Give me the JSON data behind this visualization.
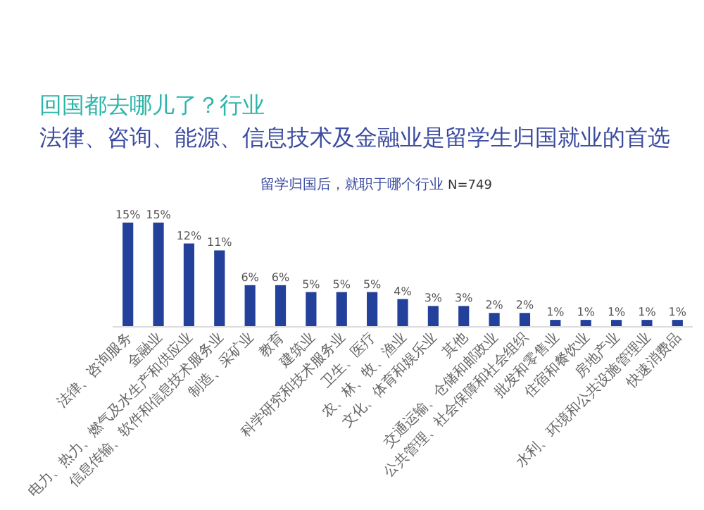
{
  "chart_data": {
    "type": "bar",
    "title": "回国都去哪儿了？行业",
    "subtitle": "法律、咨询、能源、信息技术及金融业是留学生归国就业的首选",
    "annotations": [
      "留学归国后，就职于哪个行业",
      "N=749"
    ],
    "categories": [
      "法律、咨询服务",
      "金融业",
      "电力、热力、燃气及水生产和供应业",
      "信息传输、软件和信息技术服务业",
      "制造、采矿业",
      "教育",
      "建筑业",
      "科学研究和技术服务业",
      "卫生、医疗",
      "农、林、牧、渔业",
      "文化、体育和娱乐业",
      "其他",
      "交通运输、仓储和邮政业",
      "公共管理、社会保障和社会组织",
      "批发和零售业",
      "住宿和餐饮业",
      "房地产业",
      "水利、环境和公共设施管理业",
      "快速消费品"
    ],
    "values": [
      15,
      15,
      12,
      11,
      6,
      6,
      5,
      5,
      5,
      4,
      3,
      3,
      2,
      2,
      1,
      1,
      1,
      1,
      1
    ],
    "value_labels": [
      "15%",
      "15%",
      "12%",
      "11%",
      "6%",
      "6%",
      "5%",
      "5%",
      "5%",
      "4%",
      "3%",
      "3%",
      "2%",
      "2%",
      "1%",
      "1%",
      "1%",
      "1%",
      "1%"
    ],
    "color": "#23409a"
  }
}
